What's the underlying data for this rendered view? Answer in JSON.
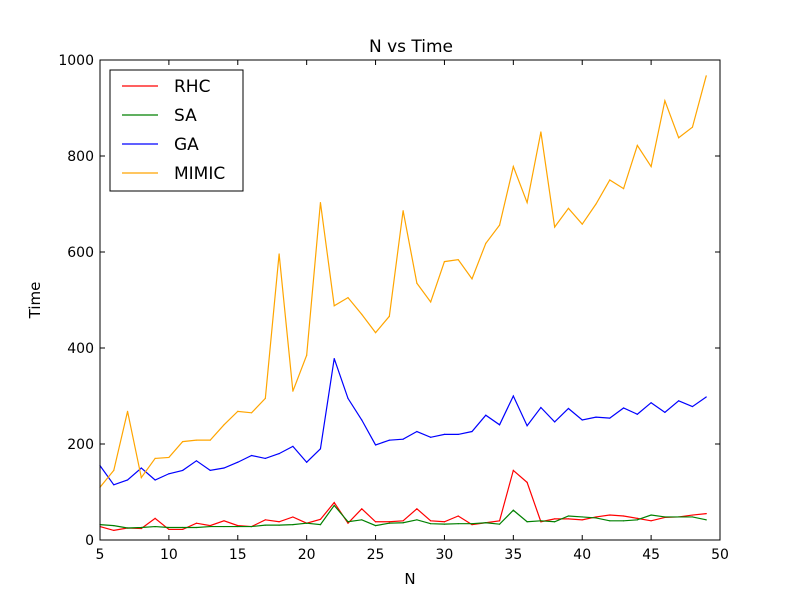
{
  "chart_data": {
    "type": "line",
    "title": "N vs Time",
    "xlabel": "N",
    "ylabel": "Time",
    "xlim": [
      5,
      50
    ],
    "ylim": [
      0,
      1000
    ],
    "xticks": [
      "5",
      "10",
      "15",
      "20",
      "25",
      "30",
      "35",
      "40",
      "45",
      "50"
    ],
    "yticks": [
      "0",
      "200",
      "400",
      "600",
      "800",
      "1000"
    ],
    "grid": false,
    "legend_position": "top-left",
    "x": [
      5,
      6,
      7,
      8,
      9,
      10,
      11,
      12,
      13,
      14,
      15,
      16,
      17,
      18,
      19,
      20,
      21,
      22,
      23,
      24,
      25,
      26,
      27,
      28,
      29,
      30,
      31,
      32,
      33,
      34,
      35,
      36,
      37,
      38,
      39,
      40,
      41,
      42,
      43,
      44,
      45,
      46,
      47,
      48,
      49
    ],
    "series": [
      {
        "name": "RHC",
        "color": "#ff0000",
        "values": [
          28,
          20,
          25,
          24,
          45,
          22,
          22,
          35,
          30,
          40,
          30,
          28,
          42,
          38,
          48,
          35,
          43,
          78,
          35,
          65,
          38,
          38,
          40,
          65,
          40,
          38,
          50,
          32,
          36,
          40,
          145,
          120,
          38,
          44,
          44,
          42,
          48,
          52,
          50,
          45,
          40,
          47,
          48,
          52,
          55
        ]
      },
      {
        "name": "SA",
        "color": "#008000",
        "values": [
          32,
          30,
          25,
          26,
          28,
          26,
          26,
          26,
          28,
          28,
          28,
          28,
          31,
          31,
          32,
          35,
          32,
          72,
          38,
          42,
          30,
          35,
          36,
          42,
          34,
          33,
          34,
          34,
          36,
          33,
          62,
          38,
          40,
          38,
          50,
          48,
          46,
          40,
          40,
          42,
          52,
          48,
          48,
          48,
          42
        ]
      },
      {
        "name": "GA",
        "color": "#0000ff",
        "values": [
          155,
          115,
          125,
          150,
          125,
          138,
          145,
          165,
          145,
          150,
          162,
          176,
          170,
          180,
          195,
          162,
          190,
          378,
          295,
          250,
          198,
          208,
          210,
          226,
          214,
          220,
          220,
          226,
          260,
          240,
          300,
          238,
          276,
          246,
          274,
          250,
          256,
          254,
          275,
          262,
          286,
          266,
          290,
          278,
          298
        ]
      },
      {
        "name": "MIMIC",
        "color": "#ffa500",
        "values": [
          110,
          145,
          268,
          130,
          170,
          172,
          205,
          208,
          208,
          240,
          268,
          265,
          295,
          596,
          310,
          385,
          703,
          488,
          505,
          470,
          432,
          466,
          686,
          535,
          496,
          580,
          584,
          544,
          618,
          656,
          778,
          703,
          850,
          652,
          691,
          658,
          700,
          750,
          732,
          822,
          778,
          915,
          838,
          860,
          967
        ]
      }
    ]
  }
}
